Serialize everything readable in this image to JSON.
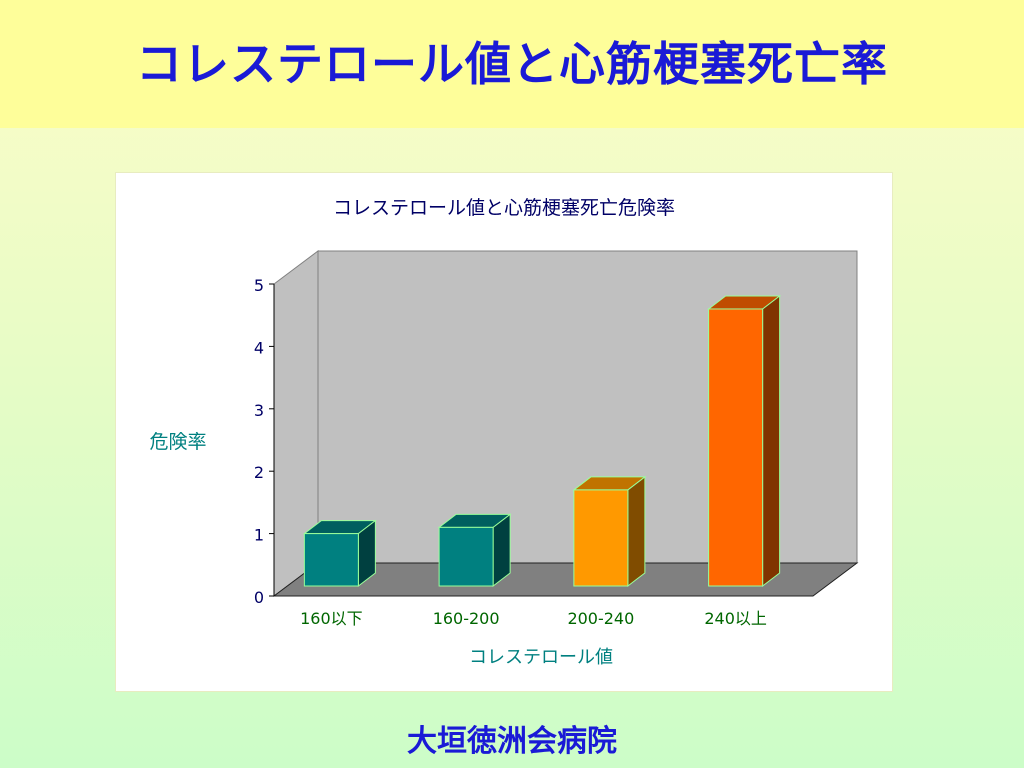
{
  "slide": {
    "title": "コレステロール値と心筋梗塞死亡率",
    "footer": "大垣徳洲会病院"
  },
  "chart_data": {
    "type": "bar",
    "title": "コレステロール値と心筋梗塞死亡危険率",
    "xlabel": "コレステロール値",
    "ylabel": "危険率",
    "categories": [
      "160以下",
      "160-200",
      "200-240",
      "240以上"
    ],
    "values": [
      1.0,
      1.1,
      1.7,
      4.6
    ],
    "ylim": [
      0,
      5
    ],
    "yticks": [
      "0",
      "1",
      "2",
      "3",
      "4",
      "5"
    ],
    "grid": false,
    "legend": "none",
    "colors": {
      "front": [
        "#008080",
        "#008080",
        "#ff9900",
        "#ff6600"
      ],
      "side": [
        "#004040",
        "#004040",
        "#804c00",
        "#803300"
      ],
      "top": [
        "#005f5f",
        "#005f5f",
        "#c07300",
        "#c04c00"
      ],
      "wall": "#c0c0c0",
      "floor": "#808080",
      "axis_text": "#000066",
      "category_text": "#006600",
      "ylabel_text": "#008080",
      "xlabel_text": "#008080"
    }
  }
}
